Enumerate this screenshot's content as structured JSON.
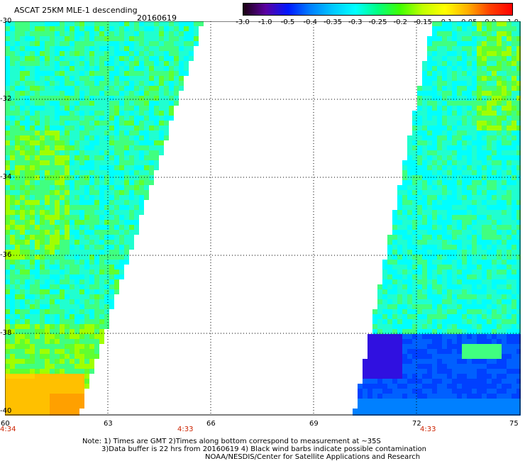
{
  "header": {
    "title": "ASCAT 25KM MLE-1 descending",
    "date": "20160619"
  },
  "colorbar": {
    "labels": [
      "-3.0",
      "-1.0",
      "-0.5",
      "-0.4",
      "-0.35",
      "-0.3",
      "-0.25",
      "-0.2",
      "-0.15",
      "-0.1",
      "-0.05",
      "0.0",
      "1.0"
    ],
    "colors": [
      "#1a0010",
      "#5a00a0",
      "#0018ff",
      "#0080ff",
      "#00c8ff",
      "#00ffff",
      "#00ff80",
      "#40ff00",
      "#c0ff00",
      "#ffff00",
      "#ffb000",
      "#ff4000",
      "#ff0000"
    ]
  },
  "axes": {
    "y_ticks": [
      "-30",
      "-32",
      "-34",
      "-36",
      "-38",
      "-40"
    ],
    "x_ticks": [
      "60",
      "63",
      "66",
      "69",
      "72",
      "75"
    ]
  },
  "times": [
    "4:34",
    "4:33",
    "4:33"
  ],
  "notes": [
    "Note: 1) Times are GMT 2)Times along bottom correspond to measurement at ~35S",
    "3)Data buffer is 22 hrs from 20160619 4) Black wind barbs indicate possible contamination",
    "NOAA/NESDIS/Center for Satellite Applications and Research"
  ]
}
